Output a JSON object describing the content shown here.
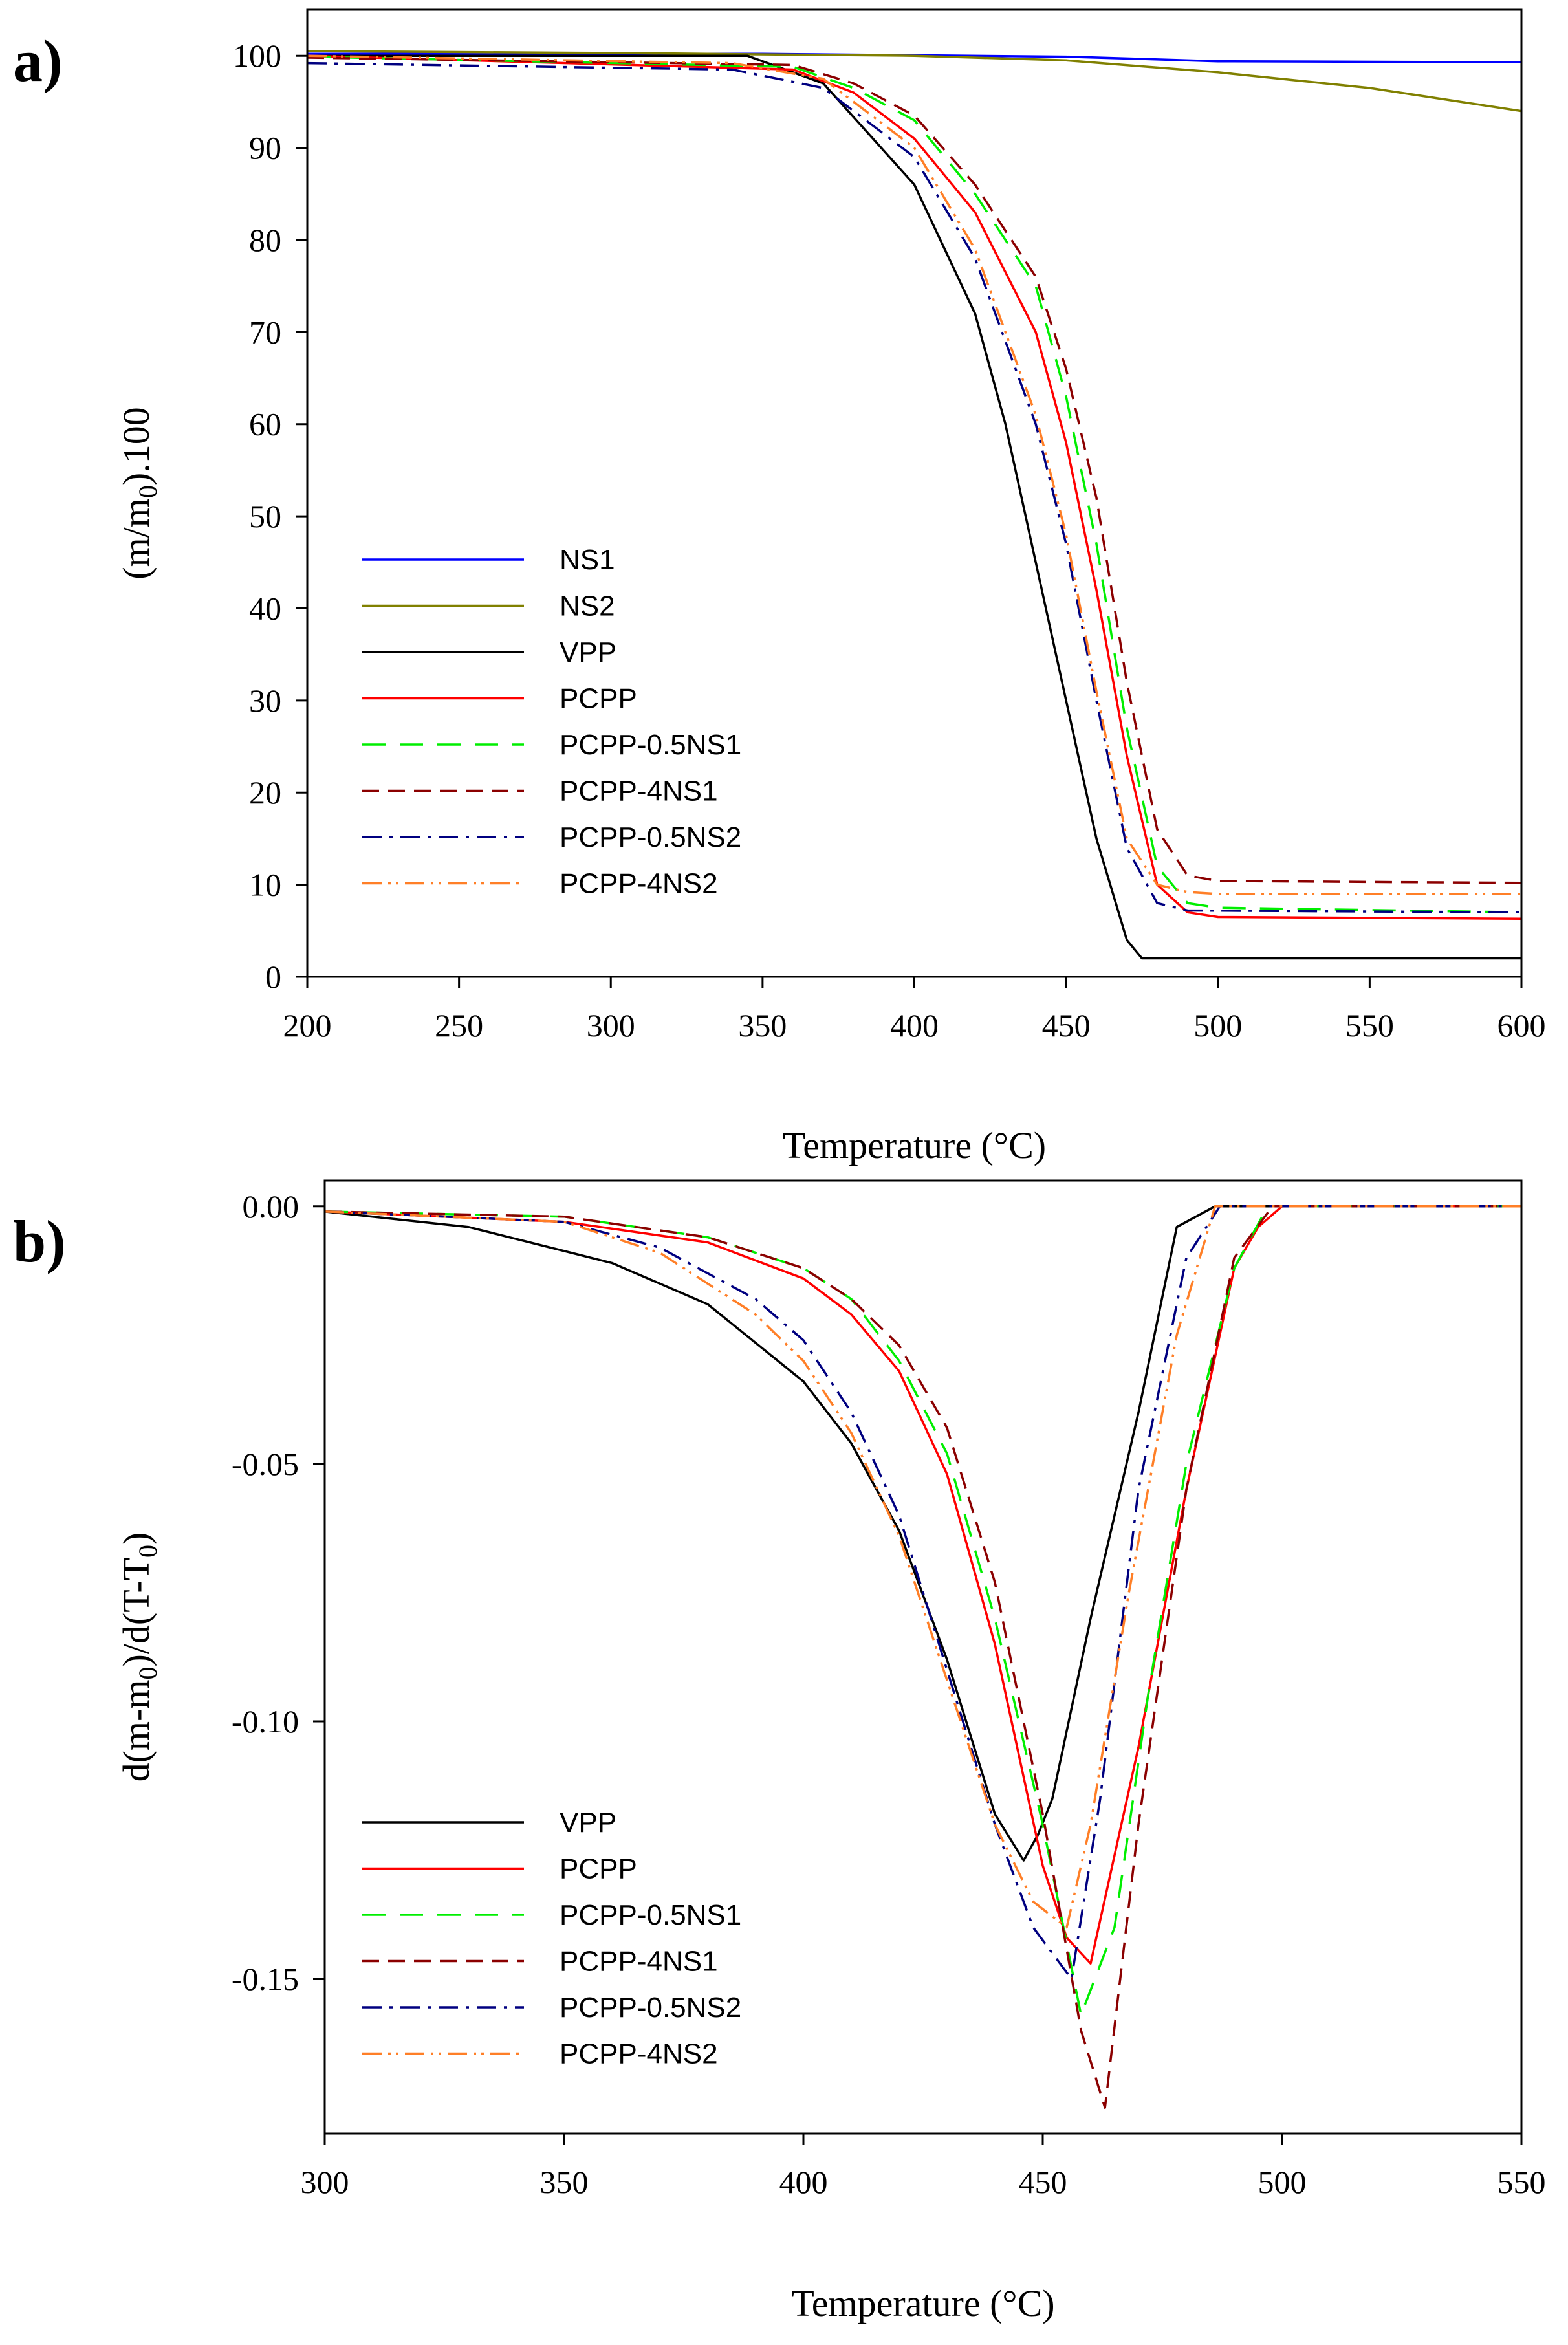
{
  "chart_data": [
    {
      "panel_label": "a)",
      "type": "line",
      "xlabel": "Temperature (°C)",
      "ylabel_main": "(m/m",
      "ylabel_sub": "0",
      "ylabel_tail": ").100",
      "xlim": [
        200,
        600
      ],
      "ylim": [
        0,
        105
      ],
      "xticks": [
        "200",
        "250",
        "300",
        "350",
        "400",
        "450",
        "500",
        "550",
        "600"
      ],
      "yticks": [
        "0",
        "10",
        "20",
        "30",
        "40",
        "50",
        "60",
        "70",
        "80",
        "90",
        "100"
      ],
      "legend_position": "left-middle",
      "series": [
        {
          "name": "NS1",
          "color": "#0000ff",
          "dash": "solid",
          "x": [
            200,
            350,
            450,
            500,
            600
          ],
          "y": [
            100.2,
            100.2,
            99.9,
            99.4,
            99.3
          ]
        },
        {
          "name": "NS2",
          "color": "#808000",
          "dash": "solid",
          "x": [
            200,
            300,
            400,
            450,
            500,
            550,
            600
          ],
          "y": [
            100.5,
            100.3,
            100.0,
            99.5,
            98.2,
            96.5,
            94.0
          ]
        },
        {
          "name": "VPP",
          "color": "#000000",
          "dash": "solid",
          "x": [
            200,
            345,
            370,
            400,
            420,
            430,
            440,
            450,
            460,
            470,
            475,
            480,
            600
          ],
          "y": [
            100.0,
            100.0,
            97.0,
            86.0,
            72.0,
            60.0,
            45.0,
            30.0,
            15.0,
            4.0,
            2.0,
            2.0,
            2.0
          ]
        },
        {
          "name": "PCPP",
          "color": "#ff0000",
          "dash": "solid",
          "x": [
            200,
            360,
            380,
            400,
            420,
            440,
            450,
            460,
            470,
            480,
            490,
            500,
            600
          ],
          "y": [
            100.0,
            98.5,
            96.0,
            91.0,
            83.0,
            70.0,
            58.0,
            42.0,
            24.0,
            10.0,
            7.0,
            6.5,
            6.3
          ]
        },
        {
          "name": "PCPP-0.5NS1",
          "color": "#00ee00",
          "dash": "36,22",
          "x": [
            200,
            360,
            380,
            400,
            420,
            440,
            450,
            460,
            470,
            480,
            490,
            500,
            600
          ],
          "y": [
            99.9,
            98.8,
            96.5,
            93.0,
            85.0,
            75.0,
            63.0,
            47.0,
            27.0,
            12.0,
            8.0,
            7.5,
            7.0
          ]
        },
        {
          "name": "PCPP-4NS1",
          "color": "#8b0000",
          "dash": "26,14",
          "x": [
            200,
            360,
            380,
            400,
            420,
            440,
            450,
            460,
            470,
            480,
            490,
            500,
            600
          ],
          "y": [
            99.8,
            99.0,
            97.0,
            93.5,
            86.0,
            76.0,
            66.0,
            52.0,
            32.0,
            16.0,
            11.0,
            10.4,
            10.2
          ]
        },
        {
          "name": "PCPP-0.5NS2",
          "color": "#000080",
          "dash": "30,12,5,12",
          "x": [
            200,
            340,
            370,
            400,
            420,
            440,
            450,
            460,
            470,
            480,
            490,
            600
          ],
          "y": [
            99.2,
            98.5,
            96.5,
            89.0,
            78.0,
            60.0,
            47.0,
            30.0,
            14.0,
            8.0,
            7.2,
            7.0
          ]
        },
        {
          "name": "PCPP-4NS2",
          "color": "#ff7f27",
          "dash": "30,10,4,8,4,10",
          "x": [
            200,
            340,
            370,
            400,
            420,
            440,
            450,
            460,
            470,
            480,
            490,
            500,
            600
          ],
          "y": [
            100.0,
            99.2,
            97.5,
            90.0,
            79.0,
            61.0,
            48.0,
            31.0,
            15.0,
            10.0,
            9.2,
            9.0,
            9.0
          ]
        }
      ]
    },
    {
      "panel_label": "b)",
      "type": "line",
      "xlabel": "Temperature (°C)",
      "ylabel_main": "d(m-m",
      "ylabel_sub": "0",
      "ylabel_mid": ")/d(T-T",
      "ylabel_sub2": "0",
      "ylabel_tail": ")",
      "xlim": [
        300,
        550
      ],
      "ylim": [
        -0.18,
        0.005
      ],
      "xticks": [
        "300",
        "350",
        "400",
        "450",
        "500",
        "550"
      ],
      "yticks": [
        "0.00",
        "-0.05",
        "-0.10",
        "-0.15"
      ],
      "legend_position": "bottom-left",
      "series": [
        {
          "name": "VPP",
          "color": "#000000",
          "dash": "solid",
          "x": [
            300,
            330,
            360,
            380,
            400,
            410,
            420,
            430,
            440,
            446,
            449,
            452,
            460,
            470,
            478,
            486,
            550
          ],
          "y": [
            -0.001,
            -0.004,
            -0.011,
            -0.019,
            -0.034,
            -0.046,
            -0.063,
            -0.088,
            -0.118,
            -0.127,
            -0.122,
            -0.115,
            -0.08,
            -0.04,
            -0.004,
            0.0,
            0.0
          ]
        },
        {
          "name": "PCPP",
          "color": "#ff0000",
          "dash": "solid",
          "x": [
            300,
            350,
            380,
            400,
            410,
            420,
            430,
            440,
            450,
            455,
            460,
            470,
            480,
            490,
            495,
            500,
            550
          ],
          "y": [
            -0.001,
            -0.003,
            -0.007,
            -0.014,
            -0.021,
            -0.032,
            -0.052,
            -0.085,
            -0.128,
            -0.142,
            -0.147,
            -0.105,
            -0.055,
            -0.012,
            -0.004,
            0.0,
            0.0
          ]
        },
        {
          "name": "PCPP-0.5NS1",
          "color": "#00ee00",
          "dash": "36,22",
          "x": [
            300,
            350,
            380,
            400,
            410,
            420,
            430,
            440,
            450,
            458,
            465,
            472,
            480,
            490,
            497,
            550
          ],
          "y": [
            -0.001,
            -0.002,
            -0.006,
            -0.012,
            -0.018,
            -0.03,
            -0.048,
            -0.08,
            -0.12,
            -0.157,
            -0.14,
            -0.095,
            -0.05,
            -0.012,
            0.0,
            0.0
          ]
        },
        {
          "name": "PCPP-4NS1",
          "color": "#8b0000",
          "dash": "26,14",
          "x": [
            300,
            350,
            380,
            400,
            410,
            420,
            430,
            440,
            450,
            458,
            463,
            470,
            480,
            490,
            498,
            550
          ],
          "y": [
            -0.001,
            -0.002,
            -0.006,
            -0.012,
            -0.018,
            -0.027,
            -0.043,
            -0.073,
            -0.118,
            -0.16,
            -0.175,
            -0.12,
            -0.055,
            -0.01,
            0.0,
            0.0
          ]
        },
        {
          "name": "PCPP-0.5NS2",
          "color": "#000080",
          "dash": "30,12,5,12",
          "x": [
            300,
            350,
            370,
            390,
            400,
            410,
            420,
            430,
            440,
            448,
            456,
            462,
            470,
            480,
            487,
            550
          ],
          "y": [
            -0.001,
            -0.003,
            -0.008,
            -0.018,
            -0.026,
            -0.04,
            -0.06,
            -0.09,
            -0.12,
            -0.14,
            -0.15,
            -0.115,
            -0.055,
            -0.01,
            0.0,
            0.0
          ]
        },
        {
          "name": "PCPP-4NS2",
          "color": "#ff7f27",
          "dash": "30,10,4,8,4,10",
          "x": [
            300,
            350,
            370,
            390,
            400,
            410,
            420,
            430,
            440,
            448,
            455,
            460,
            468,
            478,
            486,
            550
          ],
          "y": [
            -0.001,
            -0.003,
            -0.009,
            -0.021,
            -0.03,
            -0.044,
            -0.064,
            -0.092,
            -0.12,
            -0.135,
            -0.14,
            -0.12,
            -0.075,
            -0.025,
            0.0,
            0.0
          ]
        }
      ]
    }
  ]
}
